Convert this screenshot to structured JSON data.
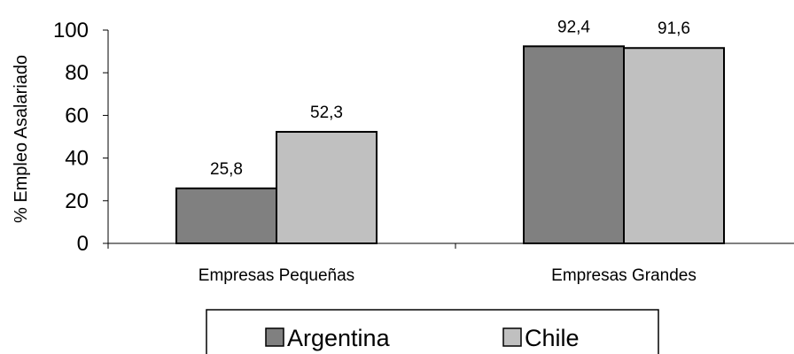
{
  "chart_data": {
    "type": "bar",
    "title": "",
    "xlabel": "",
    "ylabel": "% Empleo Asalariado",
    "ylim": [
      0,
      100
    ],
    "yticks": [
      0,
      20,
      40,
      60,
      80,
      100
    ],
    "categories": [
      "Empresas Pequeñas",
      "Empresas Grandes"
    ],
    "series": [
      {
        "name": "Argentina",
        "values": [
          25.8,
          92.4
        ],
        "labels": [
          "25,8",
          "92,4"
        ],
        "color": "#808080"
      },
      {
        "name": "Chile",
        "values": [
          52.3,
          91.6
        ],
        "labels": [
          "52,3",
          "91,6"
        ],
        "color": "#c0c0c0"
      }
    ],
    "grid": false,
    "legend_position": "bottom"
  }
}
